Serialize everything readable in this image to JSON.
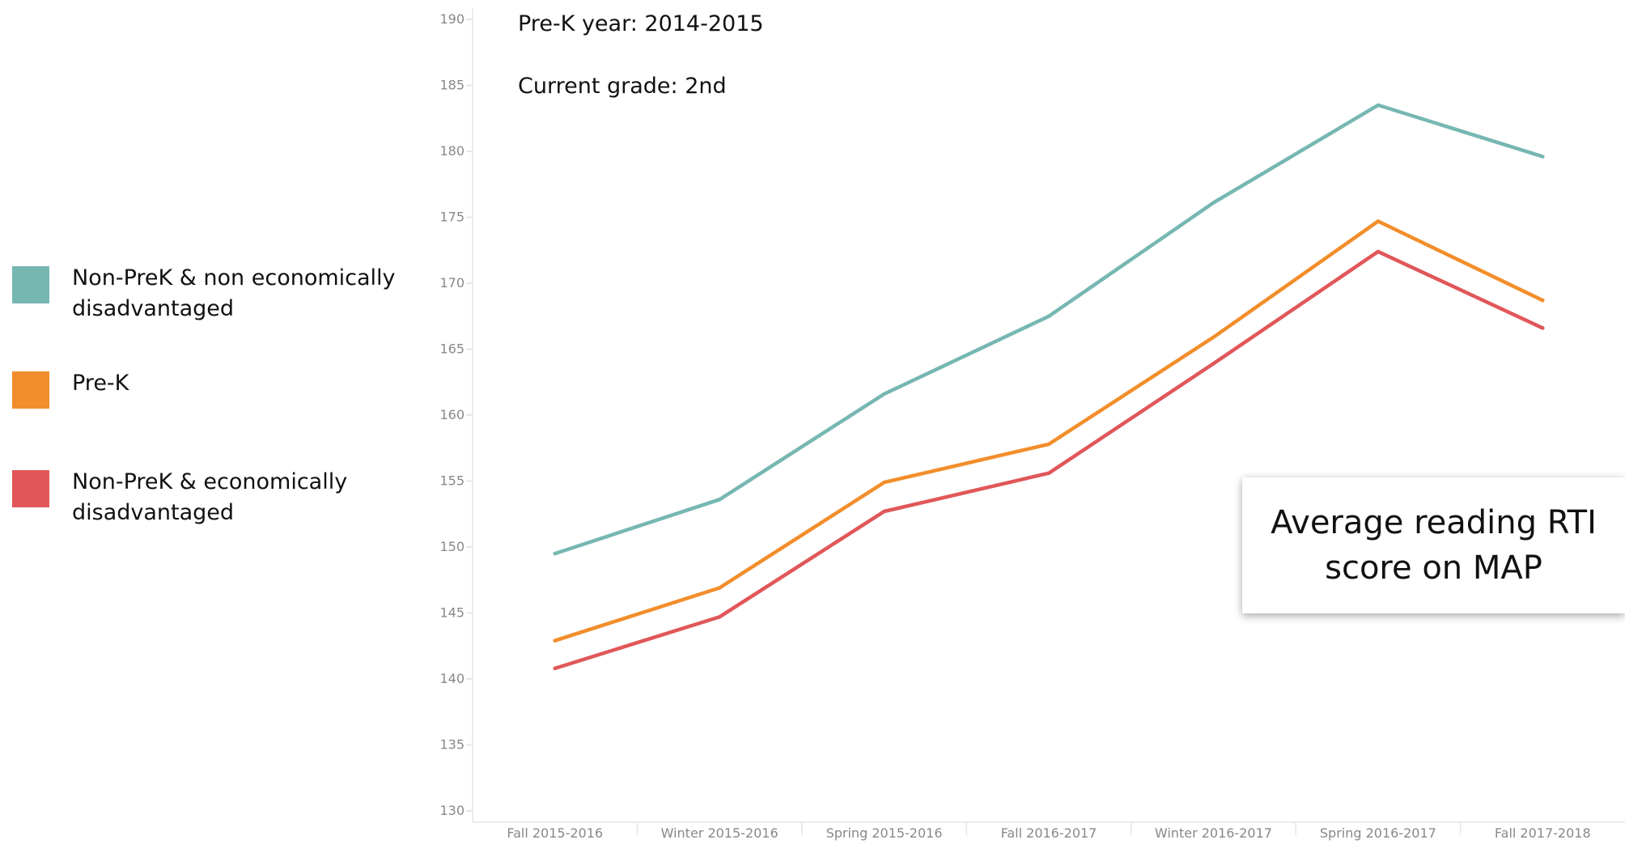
{
  "legend": {
    "items": [
      {
        "label": "Non-PreK & non economically disadvantaged",
        "color": "#76b7b2"
      },
      {
        "label": "Pre-K",
        "color": "#f28e2b"
      },
      {
        "label": "Non-PreK & economically disadvantaged",
        "color": "#e15759"
      }
    ]
  },
  "annotations": {
    "prek_year": "Pre-K year: 2014-2015",
    "current_grade": "Current grade: 2nd"
  },
  "callout": {
    "text": "Average reading RTI score on MAP"
  },
  "chart_data": {
    "type": "line",
    "title": "",
    "xlabel": "",
    "ylabel": "",
    "categories": [
      "Fall 2015-2016",
      "Winter 2015-2016",
      "Spring 2015-2016",
      "Fall 2016-2017",
      "Winter 2016-2017",
      "Spring 2016-2017",
      "Fall 2017-2018"
    ],
    "ylim": [
      130,
      190
    ],
    "yticks": [
      130,
      135,
      140,
      145,
      150,
      155,
      160,
      165,
      170,
      175,
      180,
      185,
      190
    ],
    "grid": false,
    "legend_position": "left",
    "series": [
      {
        "name": "Non-PreK & non economically disadvantaged",
        "color": "#76b7b2",
        "values": [
          149.5,
          153.6,
          161.6,
          167.5,
          176.1,
          183.5,
          179.6
        ]
      },
      {
        "name": "Pre-K",
        "color": "#f28e2b",
        "values": [
          142.9,
          146.9,
          154.9,
          157.8,
          165.9,
          174.7,
          168.7
        ]
      },
      {
        "name": "Non-PreK & economically disadvantaged",
        "color": "#e15759",
        "values": [
          140.8,
          144.7,
          152.7,
          155.6,
          163.9,
          172.4,
          166.6
        ]
      }
    ]
  }
}
